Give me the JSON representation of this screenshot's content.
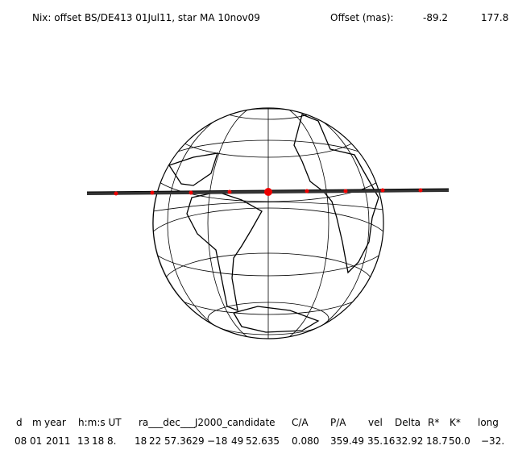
{
  "header": {
    "title": "Nix: offset BS/DE413 01Jul11, star MA 10nov09",
    "offset_label": "Offset (mas):",
    "offset_values": [
      "-89.2",
      "177.8"
    ]
  },
  "table": {
    "columns": [
      "d",
      "m",
      "year",
      "h:m:s UT",
      "ra___dec___J2000_candidate",
      "C/A",
      "P/A",
      "vel",
      "Delta",
      "R*",
      "K*",
      "long"
    ],
    "rows": [
      [
        "08",
        "01",
        "2011",
        "13",
        "18",
        "8.",
        "18",
        "22",
        "57.3629",
        "−18",
        "49",
        "52.635",
        "0.080",
        "359.49",
        "35.16",
        "32.92",
        "18.7",
        "50.0",
        "−32."
      ]
    ]
  }
}
